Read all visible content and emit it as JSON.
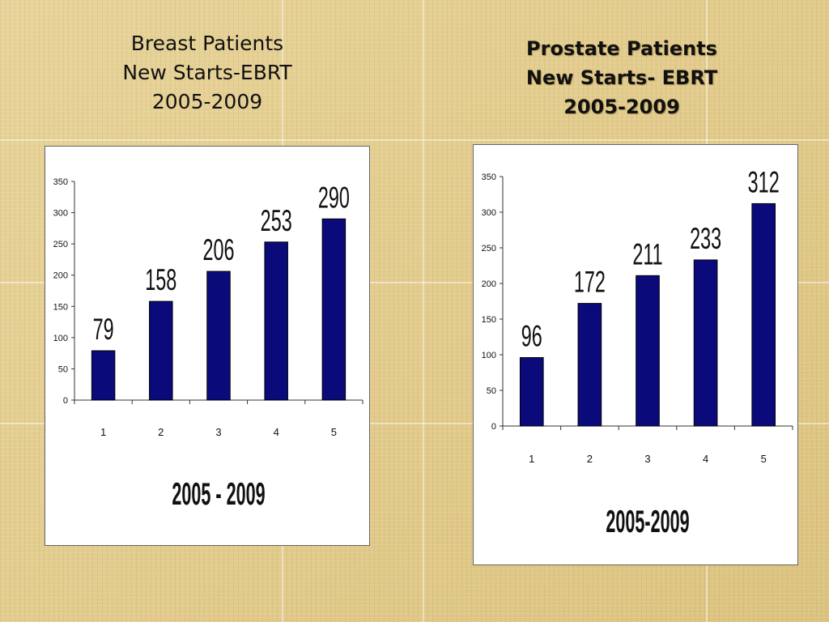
{
  "slide": {
    "left_title": [
      "Breast Patients",
      "New Starts-EBRT",
      "2005-2009"
    ],
    "right_title": [
      "Prostate Patients",
      "New Starts- EBRT",
      "2005-2009"
    ]
  },
  "chart_data": [
    {
      "type": "bar",
      "title": "",
      "categories": [
        "1",
        "2",
        "3",
        "4",
        "5"
      ],
      "values": [
        79,
        158,
        206,
        253,
        290
      ],
      "data_labels": [
        "79",
        "158",
        "206",
        "253",
        "290"
      ],
      "xlabel": "2005 - 2009",
      "ylabel": "",
      "ylim": [
        0,
        350
      ],
      "yticks": [
        0,
        50,
        100,
        150,
        200,
        250,
        300,
        350
      ],
      "bar_color": "#0a0a7a",
      "grid": false,
      "legend": "none"
    },
    {
      "type": "bar",
      "title": "",
      "categories": [
        "1",
        "2",
        "3",
        "4",
        "5"
      ],
      "values": [
        96,
        172,
        211,
        233,
        312
      ],
      "data_labels": [
        "96",
        "172",
        "211",
        "233",
        "312"
      ],
      "xlabel": "2005-2009",
      "ylabel": "",
      "ylim": [
        0,
        350
      ],
      "yticks": [
        0,
        50,
        100,
        150,
        200,
        250,
        300,
        350
      ],
      "bar_color": "#0a0a7a",
      "grid": false,
      "legend": "none"
    }
  ]
}
